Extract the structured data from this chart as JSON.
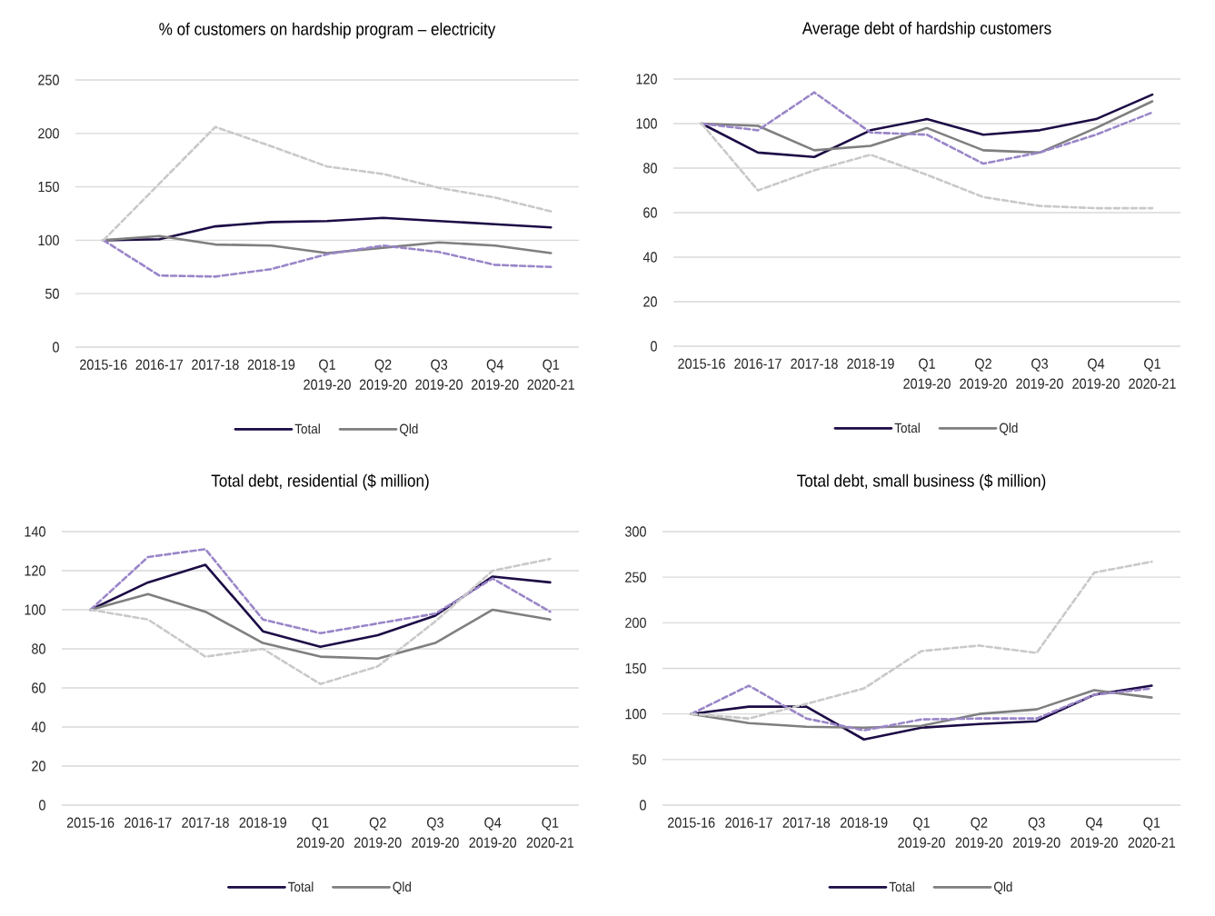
{
  "chart_data": [
    {
      "type": "line",
      "title": "% of customers on hardship program – electricity",
      "categories": [
        "2015-16",
        "2016-17",
        "2017-18",
        "2018-19",
        "Q1 2019-20",
        "Q2 2019-20",
        "Q3 2019-20",
        "Q4 2019-20",
        "Q1 2020-21"
      ],
      "ylim": [
        0,
        250
      ],
      "yticks": [
        0,
        50,
        100,
        150,
        200,
        250
      ],
      "grid": "y",
      "legend": "bottom",
      "series": [
        {
          "name": "Total",
          "color": "#1c0b45",
          "line_style": "solid",
          "values": [
            100,
            101,
            113,
            117,
            118,
            121,
            118,
            115,
            112
          ]
        },
        {
          "name": "Qld",
          "color": "#7f7f7f",
          "line_style": "solid",
          "values": [
            100,
            104,
            96,
            95,
            88,
            93,
            98,
            95,
            88
          ]
        },
        {
          "color": "#9a85c8",
          "line_style": "dashed",
          "values": [
            100,
            67,
            66,
            73,
            87,
            95,
            89,
            77,
            75
          ]
        },
        {
          "color": "#c9c9c9",
          "line_style": "dashed",
          "values": [
            100,
            153,
            206,
            188,
            169,
            162,
            149,
            140,
            127
          ]
        }
      ]
    },
    {
      "type": "line",
      "title": "Average debt of hardship customers",
      "categories": [
        "2015-16",
        "2016-17",
        "2017-18",
        "2018-19",
        "Q1 2019-20",
        "Q2 2019-20",
        "Q3 2019-20",
        "Q4 2019-20",
        "Q1 2020-21"
      ],
      "ylim": [
        0,
        120
      ],
      "yticks": [
        0,
        20,
        40,
        60,
        80,
        100,
        120
      ],
      "grid": "y",
      "legend": "bottom",
      "series": [
        {
          "name": "Total",
          "color": "#1c0b45",
          "line_style": "solid",
          "values": [
            100,
            87,
            85,
            97,
            102,
            95,
            97,
            102,
            113
          ]
        },
        {
          "name": "Qld",
          "color": "#7f7f7f",
          "line_style": "solid",
          "values": [
            100,
            99,
            88,
            90,
            98,
            88,
            87,
            98,
            110
          ]
        },
        {
          "color": "#9a85c8",
          "line_style": "dashed",
          "values": [
            100,
            97,
            114,
            96,
            95,
            82,
            87,
            95,
            105
          ]
        },
        {
          "color": "#c9c9c9",
          "line_style": "dashed",
          "values": [
            100,
            70,
            79,
            86,
            77,
            67,
            63,
            62,
            62
          ]
        }
      ]
    },
    {
      "type": "line",
      "title": "Total debt, residential ($ million)",
      "categories": [
        "2015-16",
        "2016-17",
        "2017-18",
        "2018-19",
        "Q1 2019-20",
        "Q2 2019-20",
        "Q3 2019-20",
        "Q4 2019-20",
        "Q1 2020-21"
      ],
      "ylim": [
        0,
        140
      ],
      "yticks": [
        0,
        20,
        40,
        60,
        80,
        100,
        120,
        140
      ],
      "grid": "y",
      "legend": "bottom",
      "series": [
        {
          "name": "Total",
          "color": "#1c0b45",
          "line_style": "solid",
          "values": [
            100,
            114,
            123,
            89,
            81,
            87,
            97,
            117,
            114
          ]
        },
        {
          "name": "Qld",
          "color": "#7f7f7f",
          "line_style": "solid",
          "values": [
            100,
            108,
            99,
            83,
            76,
            75,
            83,
            100,
            95
          ]
        },
        {
          "color": "#9a85c8",
          "line_style": "dashed",
          "values": [
            100,
            127,
            131,
            95,
            88,
            93,
            98,
            116,
            99
          ]
        },
        {
          "color": "#c9c9c9",
          "line_style": "dashed",
          "values": [
            100,
            95,
            76,
            80,
            62,
            71,
            94,
            120,
            126
          ]
        }
      ]
    },
    {
      "type": "line",
      "title": "Total debt, small business ($ million)",
      "categories": [
        "2015-16",
        "2016-17",
        "2017-18",
        "2018-19",
        "Q1 2019-20",
        "Q2 2019-20",
        "Q3 2019-20",
        "Q4 2019-20",
        "Q1 2020-21"
      ],
      "ylim": [
        0,
        300
      ],
      "yticks": [
        0,
        50,
        100,
        150,
        200,
        250,
        300
      ],
      "grid": "y",
      "legend": "bottom",
      "series": [
        {
          "name": "Total",
          "color": "#1c0b45",
          "line_style": "solid",
          "values": [
            100,
            108,
            108,
            72,
            85,
            89,
            92,
            121,
            131
          ]
        },
        {
          "name": "Qld",
          "color": "#7f7f7f",
          "line_style": "solid",
          "values": [
            100,
            90,
            86,
            85,
            87,
            100,
            105,
            126,
            118
          ]
        },
        {
          "color": "#9a85c8",
          "line_style": "dashed",
          "values": [
            100,
            131,
            95,
            82,
            94,
            95,
            95,
            121,
            128
          ]
        },
        {
          "color": "#c9c9c9",
          "line_style": "dashed",
          "values": [
            100,
            95,
            111,
            128,
            169,
            175,
            167,
            255,
            267
          ]
        }
      ]
    }
  ]
}
